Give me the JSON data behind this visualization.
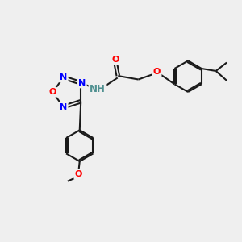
{
  "bg_color": "#efefef",
  "bond_color": "#1a1a1a",
  "N_color": "#0000ff",
  "O_color": "#ff0000",
  "teal_color": "#4f9090",
  "line_width": 1.5,
  "figsize": [
    3.0,
    3.0
  ],
  "dpi": 100,
  "xlim": [
    0,
    10
  ],
  "ylim": [
    0,
    10
  ]
}
